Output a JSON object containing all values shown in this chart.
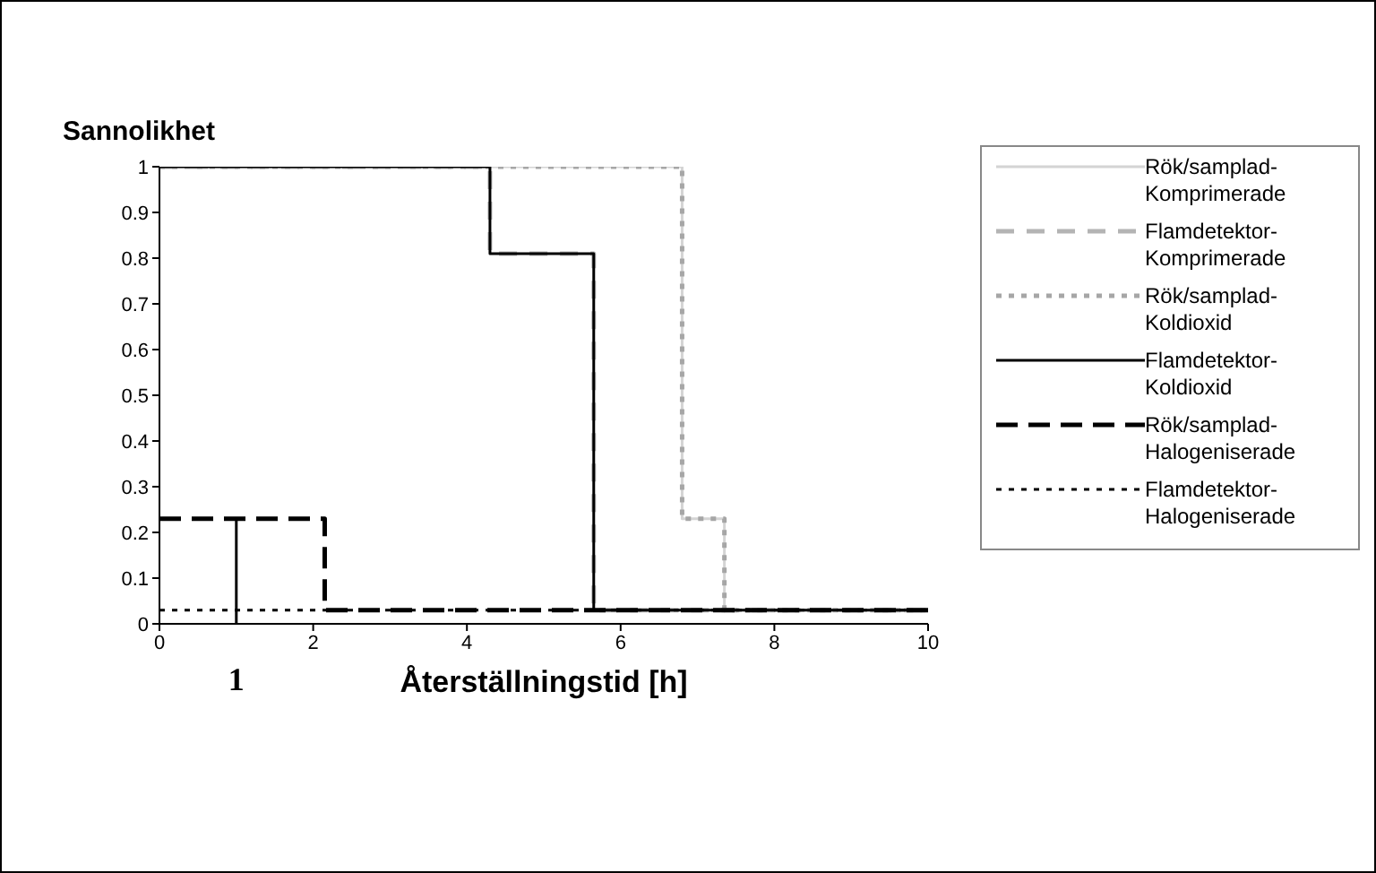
{
  "chart_data": {
    "type": "step",
    "ylabel": "Sannolikhet",
    "xlabel": "Återställningstid [h]",
    "xlim": [
      0,
      10
    ],
    "xticks": [
      0,
      2,
      4,
      6,
      8,
      10
    ],
    "ylim": [
      0,
      1
    ],
    "yticks": [
      0,
      0.1,
      0.2,
      0.3,
      0.4,
      0.5,
      0.6,
      0.7,
      0.8,
      0.9,
      1
    ],
    "grid": false,
    "legend": "right",
    "marker": "none",
    "annotations": [
      {
        "text": "1",
        "x": 1,
        "y": 0.23
      }
    ],
    "series": [
      {
        "name": "Rök/samplad-Komprimerade",
        "color": "#d4d4d4",
        "line_style": "solid",
        "x": [
          0,
          6.8,
          7.35,
          10
        ],
        "values": [
          1,
          0.23,
          0.03,
          0.03
        ]
      },
      {
        "name": "Flamdetektor-Komprimerade",
        "color": "#b4b4b4",
        "line_style": "dashed",
        "x": [
          0,
          4.3,
          5.65,
          10
        ],
        "values": [
          1,
          0.81,
          0.03,
          0.03
        ]
      },
      {
        "name": "Rök/samplad-Koldioxid",
        "color": "#a6a6a6",
        "line_style": "dotted",
        "x": [
          0,
          6.8,
          7.35,
          10
        ],
        "values": [
          1,
          0.23,
          0.03,
          0.03
        ]
      },
      {
        "name": "Flamdetektor-Koldioxid",
        "color": "#000000",
        "line_style": "solid",
        "x": [
          0,
          4.3,
          5.65,
          10
        ],
        "values": [
          1,
          0.81,
          0.03,
          0.03
        ]
      },
      {
        "name": "Rök/samplad-Halogeniserade",
        "color": "#000000",
        "line_style": "dashed",
        "x": [
          0,
          2.15,
          10
        ],
        "values": [
          0.23,
          0.03,
          0.03
        ]
      },
      {
        "name": "Flamdetektor-Halogeniserade",
        "color": "#000000",
        "line_style": "dotted",
        "x": [
          0,
          10
        ],
        "values": [
          0.03,
          0.03
        ]
      }
    ]
  }
}
